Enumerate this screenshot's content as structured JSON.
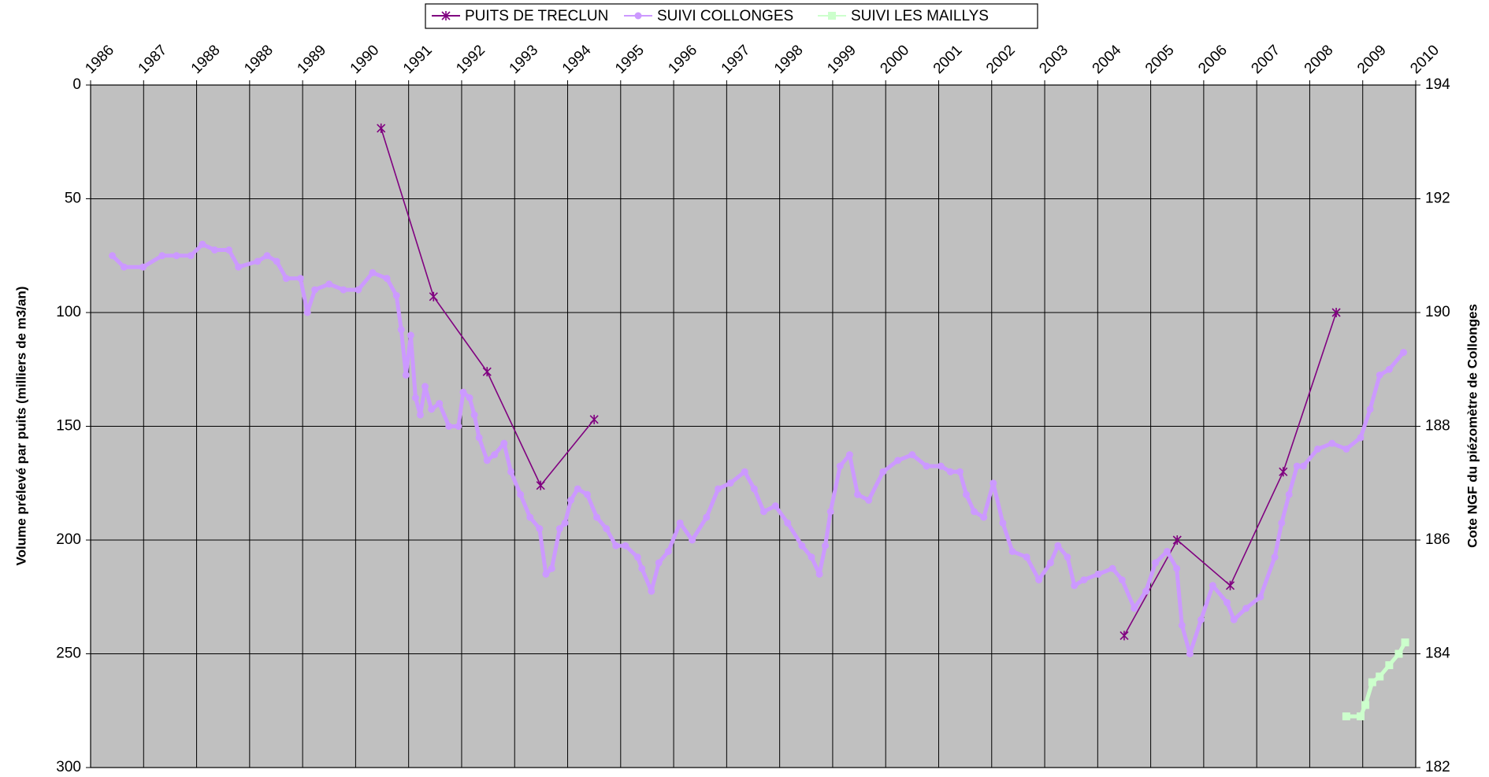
{
  "chart_data": {
    "type": "line",
    "ylabel": "Volume prélevé par puits (milliers de m3/an)",
    "y2label": "Cote NGF du piézomètre de Collonges",
    "xlim": [
      0,
      25
    ],
    "xticks": [
      {
        "value": 0,
        "label": "1986"
      },
      {
        "value": 1,
        "label": "1987"
      },
      {
        "value": 2,
        "label": "1988"
      },
      {
        "value": 3,
        "label": "1988"
      },
      {
        "value": 4,
        "label": "1989"
      },
      {
        "value": 5,
        "label": "1990"
      },
      {
        "value": 6,
        "label": "1991"
      },
      {
        "value": 7,
        "label": "1992"
      },
      {
        "value": 8,
        "label": "1993"
      },
      {
        "value": 9,
        "label": "1994"
      },
      {
        "value": 10,
        "label": "1995"
      },
      {
        "value": 11,
        "label": "1996"
      },
      {
        "value": 12,
        "label": "1997"
      },
      {
        "value": 13,
        "label": "1998"
      },
      {
        "value": 14,
        "label": "1999"
      },
      {
        "value": 15,
        "label": "2000"
      },
      {
        "value": 16,
        "label": "2001"
      },
      {
        "value": 17,
        "label": "2002"
      },
      {
        "value": 18,
        "label": "2003"
      },
      {
        "value": 19,
        "label": "2004"
      },
      {
        "value": 20,
        "label": "2005"
      },
      {
        "value": 21,
        "label": "2006"
      },
      {
        "value": 22,
        "label": "2007"
      },
      {
        "value": 23,
        "label": "2008"
      },
      {
        "value": 24,
        "label": "2009"
      },
      {
        "value": 25,
        "label": "2010"
      }
    ],
    "ylim": [
      300,
      0
    ],
    "yticks": [
      0,
      50,
      100,
      150,
      200,
      250,
      300
    ],
    "y2lim": [
      182,
      194
    ],
    "y2ticks": [
      182,
      184,
      186,
      188,
      190,
      192,
      194
    ],
    "grid": true,
    "legend": "top",
    "series": [
      {
        "name": "PUITS DE TRECLUN",
        "color": "#800080",
        "marker": "star",
        "axis": "y",
        "x": [
          5.48,
          6.47,
          7.48,
          8.49,
          9.5,
          14.5,
          19.5,
          20.5,
          21.5,
          22.5,
          23.5
        ],
        "values": [
          19,
          93,
          126,
          176,
          147,
          null,
          242,
          200,
          220,
          170,
          100
        ]
      },
      {
        "name": "SUIVI COLLONGES",
        "color": "#cc99ff",
        "marker": "circle",
        "axis": "y2",
        "x": [
          0.41,
          0.63,
          0.99,
          1.35,
          1.62,
          1.89,
          2.11,
          2.34,
          2.61,
          2.79,
          3.15,
          3.33,
          3.51,
          3.69,
          3.96,
          4.09,
          4.23,
          4.5,
          4.77,
          5.05,
          5.32,
          5.59,
          5.77,
          5.86,
          5.95,
          6.04,
          6.13,
          6.22,
          6.31,
          6.43,
          6.58,
          6.76,
          6.94,
          7.03,
          7.15,
          7.24,
          7.33,
          7.48,
          7.62,
          7.8,
          7.93,
          8.11,
          8.29,
          8.47,
          8.59,
          8.7,
          8.85,
          8.95,
          9.06,
          9.19,
          9.37,
          9.55,
          9.73,
          9.91,
          10.09,
          10.32,
          10.4,
          10.58,
          10.72,
          10.9,
          11.12,
          11.35,
          11.62,
          11.84,
          12.07,
          12.34,
          12.52,
          12.7,
          12.92,
          13.15,
          13.42,
          13.6,
          13.75,
          13.86,
          13.96,
          14.14,
          14.32,
          14.47,
          14.68,
          14.95,
          15.23,
          15.5,
          15.77,
          16.04,
          16.22,
          16.4,
          16.52,
          16.67,
          16.85,
          17.03,
          17.21,
          17.39,
          17.66,
          17.89,
          18.11,
          18.25,
          18.43,
          18.56,
          18.74,
          19.01,
          19.28,
          19.46,
          19.69,
          19.91,
          20.09,
          20.31,
          20.49,
          20.59,
          20.74,
          20.95,
          21.17,
          21.44,
          21.57,
          21.8,
          22.07,
          22.34,
          22.47,
          22.61,
          22.76,
          22.88,
          23.15,
          23.42,
          23.69,
          23.96,
          24.14,
          24.32,
          24.5,
          24.77
        ],
        "values": [
          191.0,
          190.8,
          190.8,
          191.0,
          191.0,
          191.0,
          191.2,
          191.1,
          191.1,
          190.8,
          190.9,
          191.0,
          190.9,
          190.6,
          190.6,
          190.0,
          190.4,
          190.5,
          190.4,
          190.4,
          190.7,
          190.6,
          190.3,
          189.7,
          188.9,
          189.6,
          188.5,
          188.2,
          188.7,
          188.3,
          188.4,
          188.0,
          188.0,
          188.6,
          188.5,
          188.2,
          187.8,
          187.4,
          187.5,
          187.7,
          187.2,
          186.8,
          186.4,
          186.2,
          185.4,
          185.5,
          186.2,
          186.3,
          186.7,
          186.9,
          186.8,
          186.4,
          186.2,
          185.9,
          185.9,
          185.7,
          185.5,
          185.1,
          185.6,
          185.8,
          186.3,
          186.0,
          186.4,
          186.9,
          187.0,
          187.2,
          186.9,
          186.5,
          186.6,
          186.3,
          185.9,
          185.7,
          185.4,
          185.9,
          186.5,
          187.3,
          187.5,
          186.8,
          186.7,
          187.2,
          187.4,
          187.5,
          187.3,
          187.3,
          187.2,
          187.2,
          186.8,
          186.5,
          186.4,
          187.0,
          186.3,
          185.8,
          185.7,
          185.3,
          185.6,
          185.9,
          185.7,
          185.2,
          185.3,
          185.4,
          185.5,
          185.3,
          184.8,
          185.1,
          185.6,
          185.8,
          185.5,
          184.5,
          184.0,
          184.6,
          185.2,
          184.9,
          184.6,
          184.8,
          185.0,
          185.7,
          186.3,
          186.8,
          187.3,
          187.3,
          187.6,
          187.7,
          187.6,
          187.8,
          188.3,
          188.9,
          189.0,
          189.3
        ]
      },
      {
        "name": "SUIVI LES MAILLYS",
        "color": "#ccffcc",
        "marker": "square",
        "axis": "y2",
        "x": [
          23.69,
          23.96,
          24.05,
          24.18,
          24.32,
          24.5,
          24.68,
          24.8
        ],
        "values": [
          182.9,
          182.9,
          183.1,
          183.5,
          183.6,
          183.8,
          184.0,
          184.2
        ]
      }
    ]
  }
}
